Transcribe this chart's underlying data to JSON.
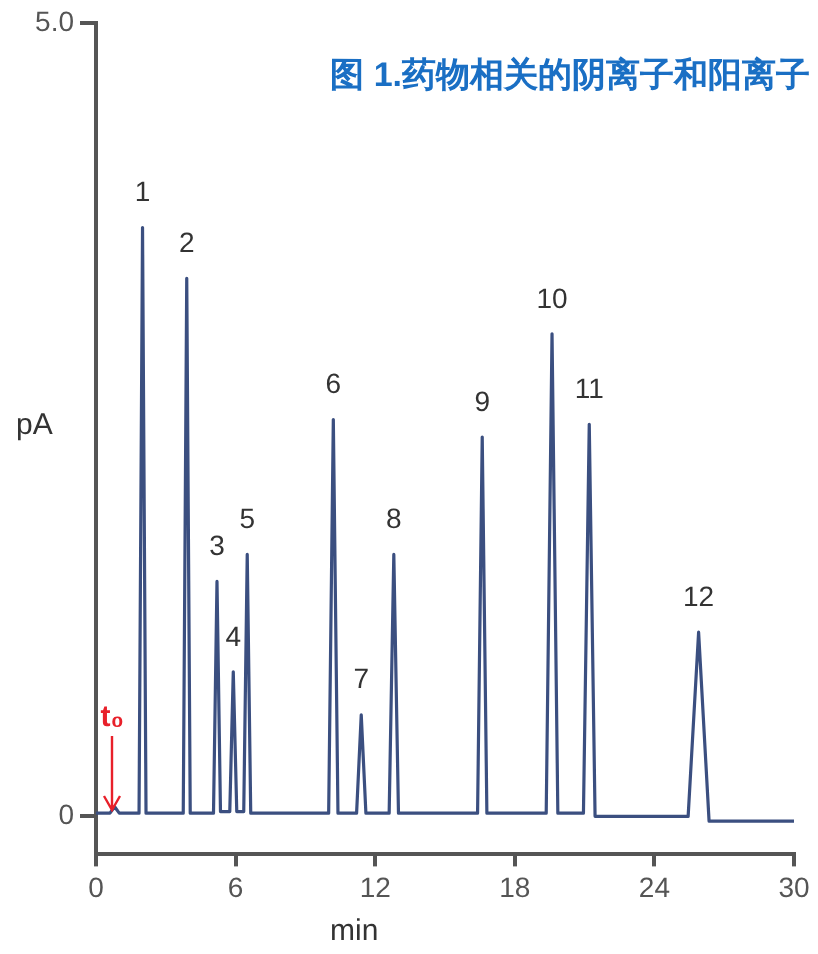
{
  "chart_data": {
    "type": "line",
    "title": "图 1.药物相关的阴离子和阳离子",
    "xlabel": "min",
    "ylabel": "pA",
    "xlim": [
      0,
      30
    ],
    "xticks": [
      0,
      6,
      12,
      18,
      24,
      30
    ],
    "ylim": [
      -0.24,
      5
    ],
    "yticks": [
      0,
      {
        "value": 5,
        "label": "5.0"
      }
    ],
    "grid": false,
    "legend": false,
    "marker": "none",
    "series": [
      {
        "color": "#3b4f80",
        "x": [
          0,
          0.6,
          0.8,
          1.0,
          1.85,
          2.0,
          2.15,
          3.75,
          3.9,
          4.05,
          5.05,
          5.2,
          5.35,
          5.55,
          5.75,
          5.9,
          6.05,
          6.35,
          6.5,
          6.65,
          10.0,
          10.2,
          10.4,
          11.2,
          11.4,
          11.6,
          12.6,
          12.8,
          13.0,
          16.4,
          16.6,
          16.8,
          19.35,
          19.6,
          19.85,
          20.95,
          21.2,
          21.45,
          25.45,
          25.9,
          26.35,
          30
        ],
        "values": [
          0.02,
          0.02,
          0.06,
          0.02,
          0.02,
          3.71,
          0.02,
          0.02,
          3.39,
          0.02,
          0.02,
          1.48,
          0.03,
          0.03,
          0.03,
          0.91,
          0.03,
          0.03,
          1.65,
          0.02,
          0.02,
          2.5,
          0.02,
          0.02,
          0.64,
          0.02,
          0.02,
          1.65,
          0.02,
          0.02,
          2.39,
          0.02,
          0.02,
          3.04,
          0.02,
          0.02,
          2.47,
          0.0,
          0.0,
          1.16,
          -0.03,
          -0.03
        ]
      }
    ],
    "annotations": [
      {
        "text": "1",
        "x": 2.0,
        "y": 3.71
      },
      {
        "text": "2",
        "x": 3.9,
        "y": 3.39
      },
      {
        "text": "3",
        "x": 5.2,
        "y": 1.48
      },
      {
        "text": "4",
        "x": 5.9,
        "y": 0.91
      },
      {
        "text": "5",
        "x": 6.5,
        "y": 1.65
      },
      {
        "text": "6",
        "x": 10.2,
        "y": 2.5
      },
      {
        "text": "7",
        "x": 11.4,
        "y": 0.64
      },
      {
        "text": "8",
        "x": 12.8,
        "y": 1.65
      },
      {
        "text": "9",
        "x": 16.6,
        "y": 2.39
      },
      {
        "text": "10",
        "x": 19.6,
        "y": 3.04
      },
      {
        "text": "11",
        "x": 21.2,
        "y": 2.47
      },
      {
        "text": "12",
        "x": 25.9,
        "y": 1.16
      },
      {
        "text": "t₀",
        "x": 0.7,
        "y": 0
      }
    ]
  }
}
